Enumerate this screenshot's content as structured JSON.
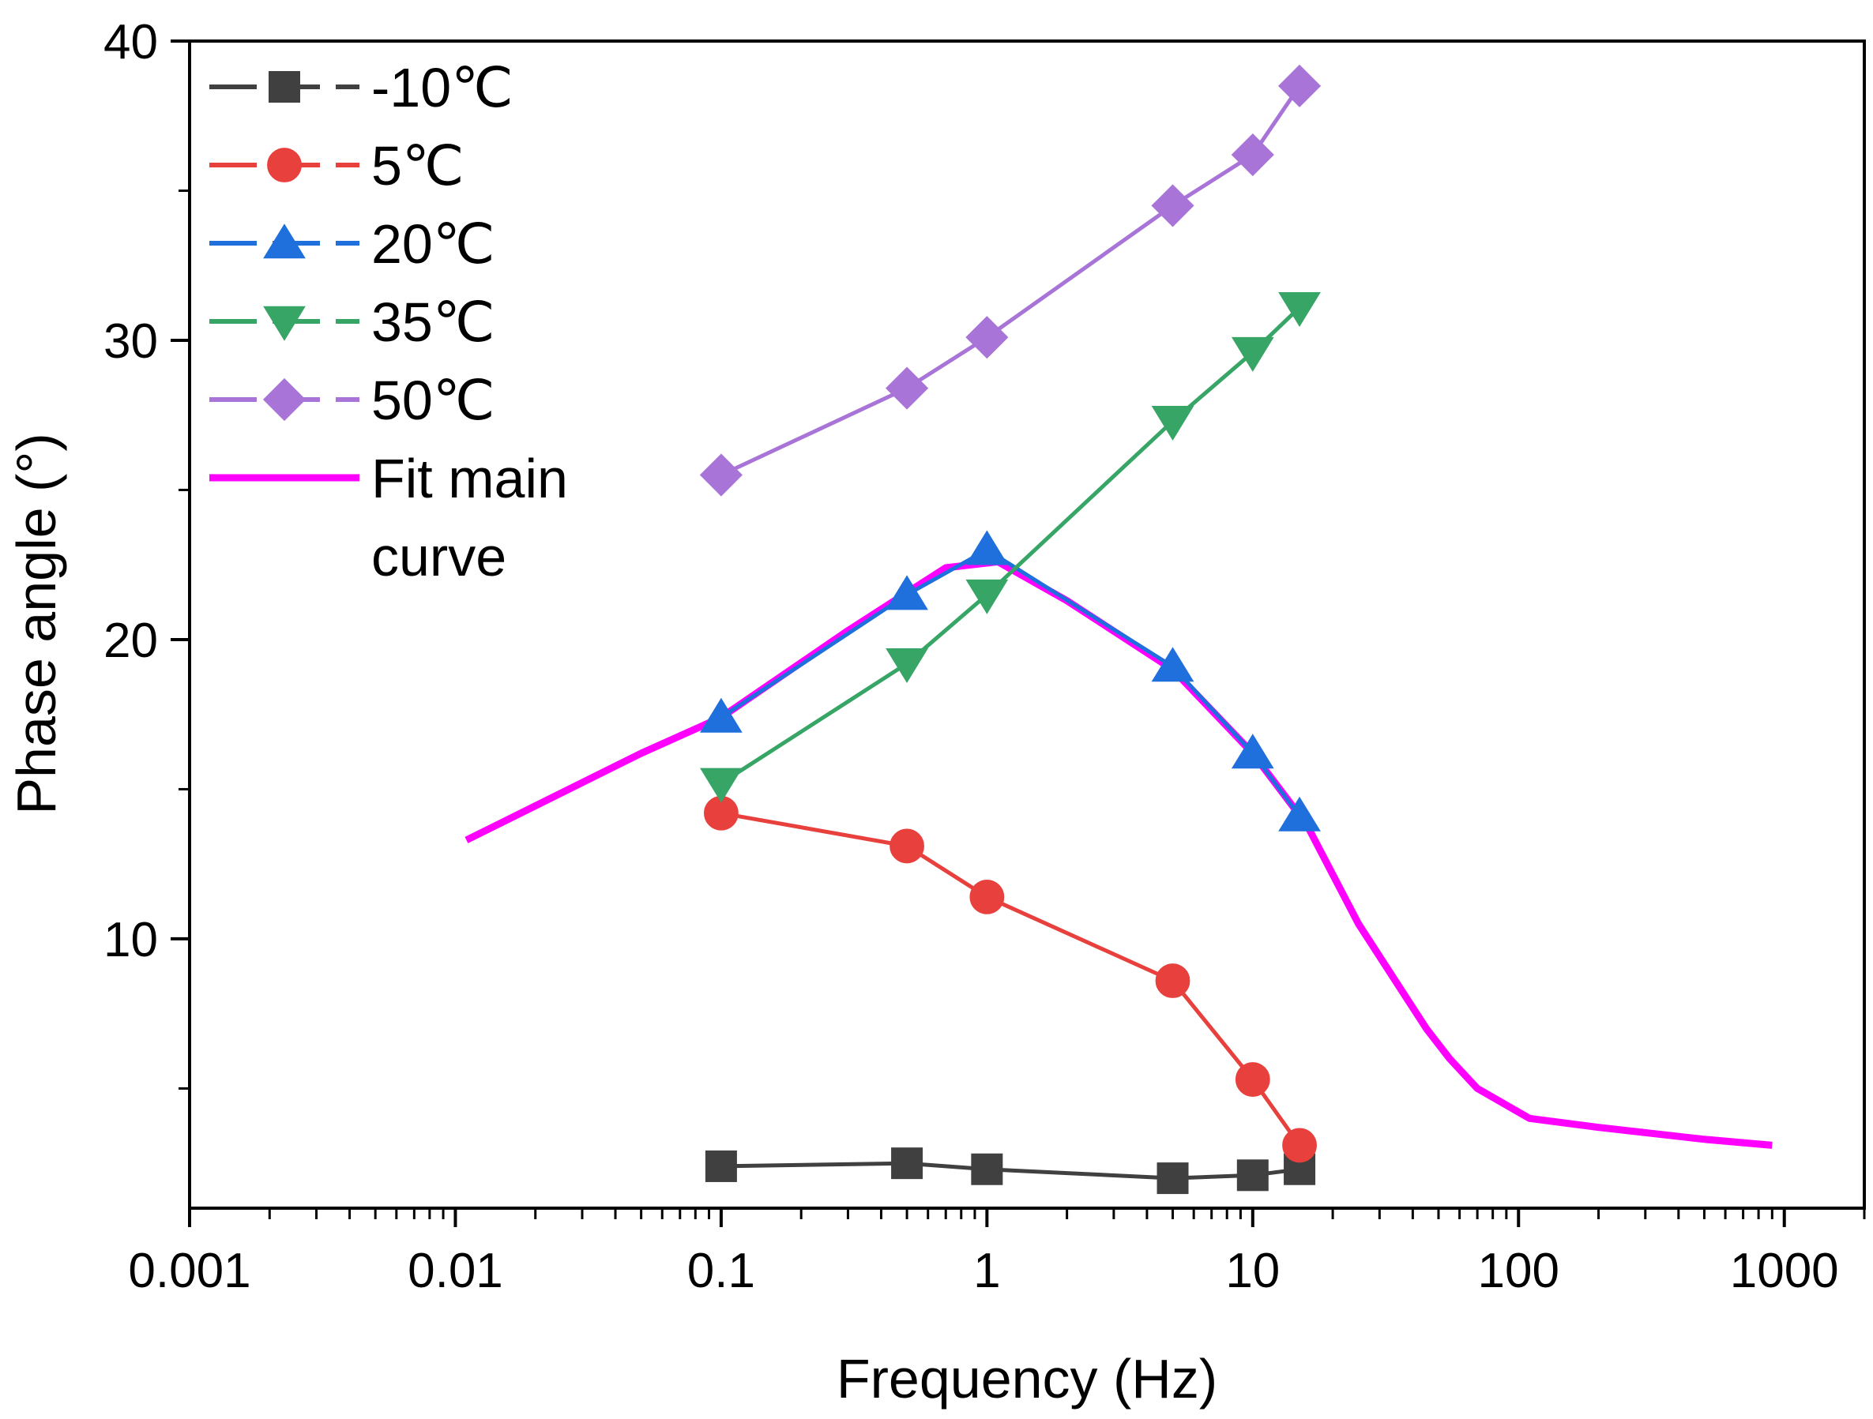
{
  "chart_data": {
    "type": "line",
    "title": "",
    "xlabel": "Frequency (Hz)",
    "ylabel": "Phase angle (°)",
    "xscale": "log",
    "xlim": [
      0.001,
      2000
    ],
    "ylim": [
      1,
      40
    ],
    "xticks": [
      0.001,
      0.01,
      0.1,
      1,
      10,
      100,
      1000
    ],
    "xtick_labels": [
      "0.001",
      "0.01",
      "0.1",
      "1",
      "10",
      "100",
      "1000"
    ],
    "yticks": [
      10,
      20,
      30,
      40
    ],
    "ytick_labels": [
      "10",
      "20",
      "30",
      "40"
    ],
    "yminor": [
      5,
      15,
      25,
      35
    ],
    "grid": false,
    "legend_position": "top-left",
    "series": [
      {
        "name": "-10℃",
        "color": "#404040",
        "marker": "square",
        "x": [
          0.1,
          0.5,
          1,
          5,
          10,
          15
        ],
        "y": [
          2.4,
          2.5,
          2.3,
          2.0,
          2.1,
          2.3
        ]
      },
      {
        "name": "5℃",
        "color": "#e8403c",
        "marker": "circle",
        "x": [
          0.1,
          0.5,
          1,
          5,
          10,
          15
        ],
        "y": [
          14.2,
          13.1,
          11.4,
          8.6,
          5.3,
          3.1
        ]
      },
      {
        "name": "20℃",
        "color": "#1f6fdc",
        "marker": "triangle-up",
        "x": [
          0.1,
          0.5,
          1,
          5,
          10,
          15
        ],
        "y": [
          17.4,
          21.5,
          23.0,
          19.1,
          16.2,
          14.1
        ]
      },
      {
        "name": "35℃",
        "color": "#36a566",
        "marker": "triangle-down",
        "x": [
          0.1,
          0.5,
          1,
          5,
          10,
          15
        ],
        "y": [
          15.2,
          19.2,
          21.5,
          27.3,
          29.6,
          31.1
        ]
      },
      {
        "name": "50℃",
        "color": "#a874d8",
        "marker": "diamond",
        "x": [
          0.1,
          0.5,
          1,
          5,
          10,
          15
        ],
        "y": [
          25.5,
          28.4,
          30.1,
          34.5,
          36.2,
          38.5
        ]
      },
      {
        "name": "Fit  main curve",
        "color": "#ff00ff",
        "marker": "none",
        "x": [
          0.011,
          0.05,
          0.1,
          0.3,
          0.7,
          1.1,
          2.0,
          5.0,
          10,
          16,
          25,
          45,
          55,
          70,
          110,
          200,
          500,
          900
        ],
        "y": [
          13.3,
          16.2,
          17.4,
          20.3,
          22.4,
          22.6,
          21.3,
          19.0,
          16.2,
          13.8,
          10.5,
          7.0,
          6.0,
          5.0,
          4.0,
          3.7,
          3.3,
          3.1
        ]
      }
    ]
  }
}
